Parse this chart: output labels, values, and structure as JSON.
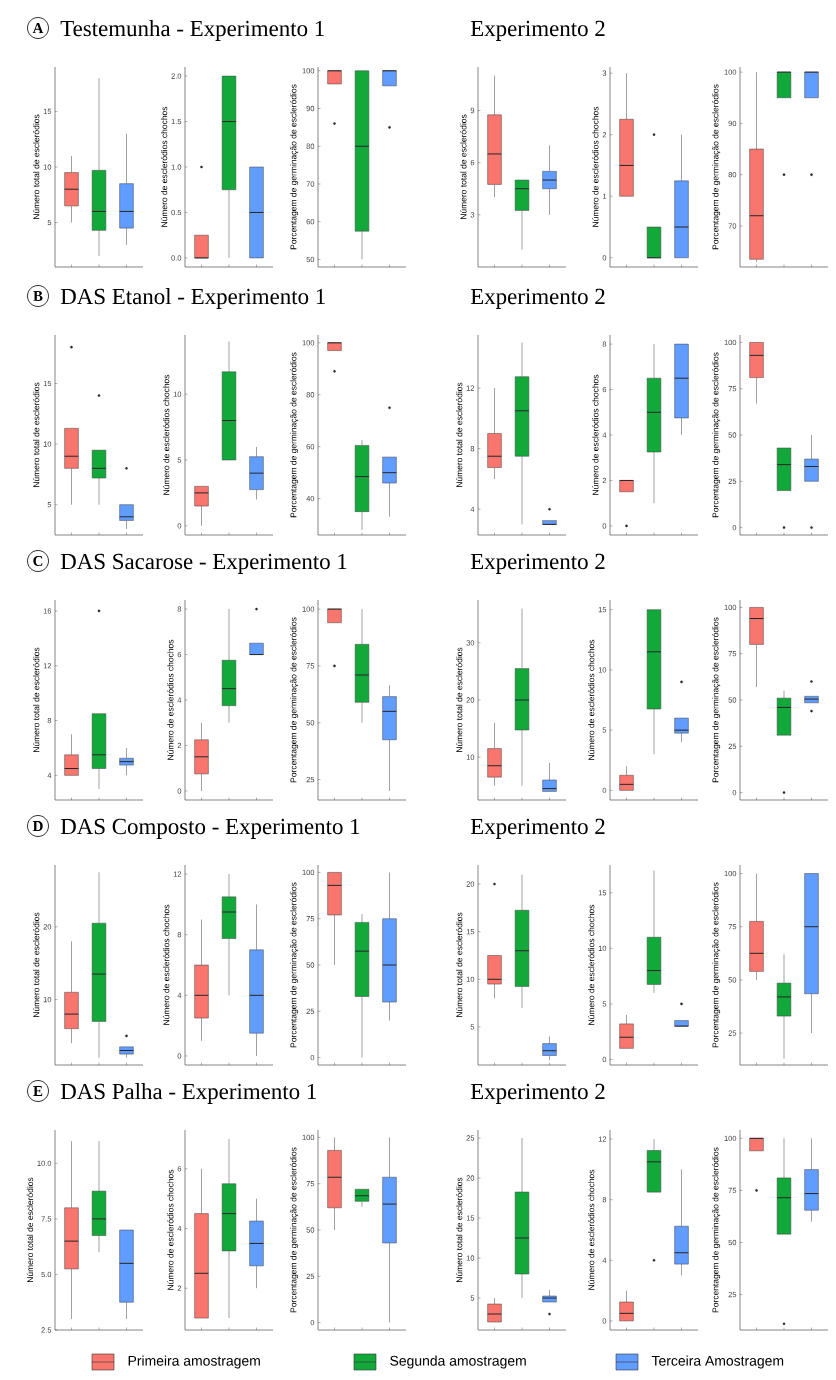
{
  "chart_data": [
    {
      "type": "box",
      "title": "Testemunha - Experimento 1",
      "annotations": [
        "A"
      ],
      "ylabel": "Número total de escleródios",
      "ylim": [
        1,
        19
      ],
      "yticks": [
        5,
        10,
        15
      ],
      "categories": [
        null,
        null,
        null
      ],
      "series": [
        {
          "color": "#f8766d",
          "boxes": [
            {
              "low": 5,
              "q1": 6.5,
              "median": 8,
              "q3": 9.5,
              "high": 11
            },
            null,
            null
          ]
        },
        {
          "color": "#12a83a",
          "boxes": [
            null,
            {
              "low": 2,
              "q1": 4.3,
              "median": 6,
              "q3": 9.7,
              "high": 18
            },
            null
          ]
        },
        {
          "color": "#619cff",
          "boxes": [
            null,
            null,
            {
              "low": 3,
              "q1": 4.5,
              "median": 6,
              "q3": 8.5,
              "high": 13
            }
          ]
        }
      ]
    },
    {
      "type": "box",
      "ylabel": "Número de escleródios chochos",
      "ylim": [
        -0.1,
        2.1
      ],
      "yticks": [
        {
          "value": 0,
          "label": "0.0"
        },
        {
          "value": 0.5,
          "label": "0.5"
        },
        {
          "value": 1,
          "label": "1.0"
        },
        {
          "value": 1.5,
          "label": "1.5"
        },
        {
          "value": 2,
          "label": "2.0"
        }
      ],
      "categories": [
        null,
        null,
        null
      ],
      "series": [
        {
          "color": "#f8766d",
          "boxes": [
            {
              "low": 0,
              "q1": 0,
              "median": 0,
              "q3": 0.25,
              "high": 0.25,
              "outliers": [
                1
              ]
            },
            null,
            null
          ]
        },
        {
          "color": "#12a83a",
          "boxes": [
            null,
            {
              "low": 0,
              "q1": 0.75,
              "median": 1.5,
              "q3": 2,
              "high": 2
            },
            null
          ]
        },
        {
          "color": "#619cff",
          "boxes": [
            null,
            null,
            {
              "low": 0,
              "q1": 0,
              "median": 0.5,
              "q3": 1,
              "high": 1
            }
          ]
        }
      ]
    },
    {
      "type": "box",
      "ylabel": "Porcentagem de germinação de escleródios",
      "ylim": [
        48,
        101
      ],
      "yticks": [
        50,
        60,
        70,
        80,
        90,
        100
      ],
      "categories": [
        null,
        null,
        null
      ],
      "series": [
        {
          "color": "#f8766d",
          "boxes": [
            {
              "low": 96.5,
              "q1": 96.5,
              "median": 100,
              "q3": 100,
              "high": 100,
              "outliers": [
                86
              ]
            },
            null,
            null
          ]
        },
        {
          "color": "#12a83a",
          "boxes": [
            null,
            {
              "low": 50,
              "q1": 57.5,
              "median": 80,
              "q3": 100,
              "high": 100
            },
            null
          ]
        },
        {
          "color": "#619cff",
          "boxes": [
            null,
            null,
            {
              "low": 96,
              "q1": 96,
              "median": 100,
              "q3": 100,
              "high": 100,
              "outliers": [
                85
              ]
            }
          ]
        }
      ]
    },
    {
      "type": "box",
      "title": "Experimento 2",
      "ylabel": "Número total de escleródios",
      "ylim": [
        0,
        11.5
      ],
      "yticks": [
        3,
        6,
        9
      ],
      "categories": [
        null,
        null,
        null
      ],
      "series": [
        {
          "color": "#f8766d",
          "boxes": [
            {
              "low": 4,
              "q1": 4.75,
              "median": 6.5,
              "q3": 8.75,
              "high": 11
            },
            null,
            null
          ]
        },
        {
          "color": "#12a83a",
          "boxes": [
            null,
            {
              "low": 1,
              "q1": 3.25,
              "median": 4.5,
              "q3": 5,
              "high": 5
            },
            null
          ]
        },
        {
          "color": "#619cff",
          "boxes": [
            null,
            null,
            {
              "low": 3,
              "q1": 4.5,
              "median": 5,
              "q3": 5.5,
              "high": 7
            }
          ]
        }
      ]
    },
    {
      "type": "box",
      "ylabel": "Número de escleródios chochos",
      "ylim": [
        -0.15,
        3.1
      ],
      "yticks": [
        0,
        1,
        2,
        3
      ],
      "categories": [
        null,
        null,
        null
      ],
      "series": [
        {
          "color": "#f8766d",
          "boxes": [
            {
              "low": 1,
              "q1": 1,
              "median": 1.5,
              "q3": 2.25,
              "high": 3
            },
            null,
            null
          ]
        },
        {
          "color": "#12a83a",
          "boxes": [
            null,
            {
              "low": 0,
              "q1": 0,
              "median": 0,
              "q3": 0.5,
              "high": 0.5,
              "outliers": [
                2
              ]
            },
            null
          ]
        },
        {
          "color": "#619cff",
          "boxes": [
            null,
            null,
            {
              "low": 0,
              "q1": 0,
              "median": 0.5,
              "q3": 1.25,
              "high": 2
            }
          ]
        }
      ]
    },
    {
      "type": "box",
      "ylabel": "Porcentagem de germinação de escleródios",
      "ylim": [
        62,
        101
      ],
      "yticks": [
        70,
        80,
        90,
        100
      ],
      "categories": [
        null,
        null,
        null
      ],
      "series": [
        {
          "color": "#f8766d",
          "boxes": [
            {
              "low": 63,
              "q1": 63.5,
              "median": 72,
              "q3": 85,
              "high": 100
            },
            null,
            null
          ]
        },
        {
          "color": "#12a83a",
          "boxes": [
            null,
            {
              "low": 95,
              "q1": 95,
              "median": 100,
              "q3": 100,
              "high": 100,
              "outliers": [
                80
              ]
            },
            null
          ]
        },
        {
          "color": "#619cff",
          "boxes": [
            null,
            null,
            {
              "low": 95,
              "q1": 95,
              "median": 100,
              "q3": 100,
              "high": 100,
              "outliers": [
                80
              ]
            }
          ]
        }
      ]
    },
    {
      "type": "box",
      "title": "DAS Etanol - Experimento 1",
      "annotations": [
        "B"
      ],
      "ylabel": "Número total de escleródios",
      "ylim": [
        2.5,
        19
      ],
      "yticks": [
        5,
        10,
        15
      ],
      "categories": [
        null,
        null,
        null
      ],
      "series": [
        {
          "color": "#f8766d",
          "boxes": [
            {
              "low": 5,
              "q1": 8,
              "median": 9,
              "q3": 11.3,
              "high": 11.3,
              "outliers": [
                18
              ]
            },
            null,
            null
          ]
        },
        {
          "color": "#12a83a",
          "boxes": [
            null,
            {
              "low": 5,
              "q1": 7.2,
              "median": 8,
              "q3": 9.5,
              "high": 9.5,
              "outliers": [
                14
              ]
            },
            null
          ]
        },
        {
          "color": "#619cff",
          "boxes": [
            null,
            null,
            {
              "low": 3,
              "q1": 3.7,
              "median": 4,
              "q3": 5,
              "high": 5,
              "outliers": [
                8
              ]
            }
          ]
        }
      ]
    },
    {
      "type": "box",
      "ylabel": "Número de escleródios chochos",
      "ylim": [
        -0.7,
        14.5
      ],
      "yticks": [
        0,
        5,
        10
      ],
      "categories": [
        null,
        null,
        null
      ],
      "series": [
        {
          "color": "#f8766d",
          "boxes": [
            {
              "low": 0,
              "q1": 1.5,
              "median": 2.5,
              "q3": 3,
              "high": 3
            },
            null,
            null
          ]
        },
        {
          "color": "#12a83a",
          "boxes": [
            null,
            {
              "low": 5,
              "q1": 5,
              "median": 8,
              "q3": 11.7,
              "high": 14
            },
            null
          ]
        },
        {
          "color": "#619cff",
          "boxes": [
            null,
            null,
            {
              "low": 2,
              "q1": 2.75,
              "median": 4,
              "q3": 5.25,
              "high": 6
            }
          ]
        }
      ]
    },
    {
      "type": "box",
      "ylabel": "Porcentagem de germinação de escleródios",
      "ylim": [
        26,
        103
      ],
      "yticks": [
        40,
        60,
        80,
        100
      ],
      "categories": [
        null,
        null,
        null
      ],
      "series": [
        {
          "color": "#f8766d",
          "boxes": [
            {
              "low": 97,
              "q1": 97,
              "median": 100,
              "q3": 100,
              "high": 100,
              "outliers": [
                89
              ]
            },
            null,
            null
          ]
        },
        {
          "color": "#12a83a",
          "boxes": [
            null,
            {
              "low": 28,
              "q1": 35,
              "median": 48.5,
              "q3": 60.5,
              "high": 62.5
            },
            null
          ]
        },
        {
          "color": "#619cff",
          "boxes": [
            null,
            null,
            {
              "low": 33,
              "q1": 46,
              "median": 50,
              "q3": 56,
              "high": 56,
              "outliers": [
                75
              ]
            }
          ]
        }
      ]
    },
    {
      "type": "box",
      "title": "Experimento 2",
      "ylabel": "Número total de escleródios",
      "ylim": [
        2.3,
        15.5
      ],
      "yticks": [
        4,
        8,
        12
      ],
      "categories": [
        null,
        null,
        null
      ],
      "series": [
        {
          "color": "#f8766d",
          "boxes": [
            {
              "low": 6,
              "q1": 6.75,
              "median": 7.5,
              "q3": 9,
              "high": 12
            },
            null,
            null
          ]
        },
        {
          "color": "#12a83a",
          "boxes": [
            null,
            {
              "low": 3,
              "q1": 7.5,
              "median": 10.5,
              "q3": 12.75,
              "high": 15
            },
            null
          ]
        },
        {
          "color": "#619cff",
          "boxes": [
            null,
            null,
            {
              "low": 3,
              "q1": 3,
              "median": 3,
              "q3": 3.25,
              "high": 3.25,
              "outliers": [
                4
              ]
            }
          ]
        }
      ]
    },
    {
      "type": "box",
      "ylabel": "Número de escleródios chochos",
      "ylim": [
        -0.4,
        8.4
      ],
      "yticks": [
        0,
        2,
        4,
        6,
        8
      ],
      "categories": [
        null,
        null,
        null
      ],
      "series": [
        {
          "color": "#f8766d",
          "boxes": [
            {
              "low": 1.5,
              "q1": 1.5,
              "median": 2,
              "q3": 2,
              "high": 2,
              "outliers": [
                0
              ]
            },
            null,
            null
          ]
        },
        {
          "color": "#12a83a",
          "boxes": [
            null,
            {
              "low": 1,
              "q1": 3.25,
              "median": 5,
              "q3": 6.5,
              "high": 8
            },
            null
          ]
        },
        {
          "color": "#619cff",
          "boxes": [
            null,
            null,
            {
              "low": 4,
              "q1": 4.75,
              "median": 6.5,
              "q3": 8,
              "high": 8
            }
          ]
        }
      ]
    },
    {
      "type": "box",
      "ylabel": "Porcentagem de germinação de escleródios",
      "ylim": [
        -4,
        104
      ],
      "yticks": [
        0,
        25,
        50,
        75,
        100
      ],
      "categories": [
        null,
        null,
        null
      ],
      "series": [
        {
          "color": "#f8766d",
          "boxes": [
            {
              "low": 67,
              "q1": 81,
              "median": 93,
              "q3": 100,
              "high": 100
            },
            null,
            null
          ]
        },
        {
          "color": "#12a83a",
          "boxes": [
            null,
            {
              "low": 20,
              "q1": 20,
              "median": 34,
              "q3": 43,
              "high": 43,
              "outliers": [
                0
              ]
            },
            null
          ]
        },
        {
          "color": "#619cff",
          "boxes": [
            null,
            null,
            {
              "low": 25,
              "q1": 25,
              "median": 33,
              "q3": 37,
              "high": 50,
              "outliers": [
                0
              ]
            }
          ]
        }
      ]
    },
    {
      "type": "box",
      "title": "DAS Sacarose - Experimento 1",
      "annotations": [
        "C"
      ],
      "ylabel": "Número total de escleródios",
      "ylim": [
        2.2,
        16.8
      ],
      "yticks": [
        4,
        8,
        12,
        16
      ],
      "categories": [
        null,
        null,
        null
      ],
      "series": [
        {
          "color": "#f8766d",
          "boxes": [
            {
              "low": 4,
              "q1": 4,
              "median": 4.5,
              "q3": 5.5,
              "high": 7
            },
            null,
            null
          ]
        },
        {
          "color": "#12a83a",
          "boxes": [
            null,
            {
              "low": 3,
              "q1": 4.5,
              "median": 5.5,
              "q3": 8.5,
              "high": 8.5,
              "outliers": [
                16
              ]
            },
            null
          ]
        },
        {
          "color": "#619cff",
          "boxes": [
            null,
            null,
            {
              "low": 4,
              "q1": 4.75,
              "median": 5,
              "q3": 5.25,
              "high": 6
            }
          ]
        }
      ]
    },
    {
      "type": "box",
      "ylabel": "Número de escleródios chochos",
      "ylim": [
        -0.4,
        8.4
      ],
      "yticks": [
        0,
        2,
        4,
        6,
        8
      ],
      "categories": [
        null,
        null,
        null
      ],
      "series": [
        {
          "color": "#f8766d",
          "boxes": [
            {
              "low": 0,
              "q1": 0.75,
              "median": 1.5,
              "q3": 2.25,
              "high": 3
            },
            null,
            null
          ]
        },
        {
          "color": "#12a83a",
          "boxes": [
            null,
            {
              "low": 3,
              "q1": 3.75,
              "median": 4.5,
              "q3": 5.75,
              "high": 8
            },
            null
          ]
        },
        {
          "color": "#619cff",
          "boxes": [
            null,
            null,
            {
              "low": 6,
              "q1": 6,
              "median": 6,
              "q3": 6.5,
              "high": 6.5,
              "outliers": [
                8
              ]
            }
          ]
        }
      ]
    },
    {
      "type": "box",
      "ylabel": "Porcentagem de germinação de escleródios",
      "ylim": [
        16,
        104
      ],
      "yticks": [
        25,
        50,
        75,
        100
      ],
      "categories": [
        null,
        null,
        null
      ],
      "series": [
        {
          "color": "#f8766d",
          "boxes": [
            {
              "low": 94,
              "q1": 94,
              "median": 100,
              "q3": 100,
              "high": 100,
              "outliers": [
                75
              ]
            },
            null,
            null
          ]
        },
        {
          "color": "#12a83a",
          "boxes": [
            null,
            {
              "low": 50,
              "q1": 59,
              "median": 71,
              "q3": 84.5,
              "high": 100
            },
            null
          ]
        },
        {
          "color": "#619cff",
          "boxes": [
            null,
            null,
            {
              "low": 20,
              "q1": 42.5,
              "median": 55,
              "q3": 61.5,
              "high": 66.5
            }
          ]
        }
      ]
    },
    {
      "type": "box",
      "title": "Experimento 2",
      "ylabel": "Número total de escleródios",
      "ylim": [
        2.5,
        37.5
      ],
      "yticks": [
        10,
        20,
        30
      ],
      "categories": [
        null,
        null,
        null
      ],
      "series": [
        {
          "color": "#f8766d",
          "boxes": [
            {
              "low": 5,
              "q1": 6.5,
              "median": 8.5,
              "q3": 11.5,
              "high": 16
            },
            null,
            null
          ]
        },
        {
          "color": "#12a83a",
          "boxes": [
            null,
            {
              "low": 5,
              "q1": 14.75,
              "median": 20,
              "q3": 25.5,
              "high": 36
            },
            null
          ]
        },
        {
          "color": "#619cff",
          "boxes": [
            null,
            null,
            {
              "low": 4,
              "q1": 4,
              "median": 4.5,
              "q3": 6,
              "high": 9
            }
          ]
        }
      ]
    },
    {
      "type": "box",
      "ylabel": "Número de escleródios chochos",
      "ylim": [
        -0.8,
        15.8
      ],
      "yticks": [
        0,
        5,
        10,
        15
      ],
      "categories": [
        null,
        null,
        null
      ],
      "series": [
        {
          "color": "#f8766d",
          "boxes": [
            {
              "low": 0,
              "q1": 0,
              "median": 0.5,
              "q3": 1.25,
              "high": 2
            },
            null,
            null
          ]
        },
        {
          "color": "#12a83a",
          "boxes": [
            null,
            {
              "low": 3,
              "q1": 6.75,
              "median": 11.5,
              "q3": 15,
              "high": 15
            },
            null
          ]
        },
        {
          "color": "#619cff",
          "boxes": [
            null,
            null,
            {
              "low": 4,
              "q1": 4.75,
              "median": 5,
              "q3": 6,
              "high": 6,
              "outliers": [
                9
              ]
            }
          ]
        }
      ]
    },
    {
      "type": "box",
      "ylabel": "Porcentagem de germinação de escleródios",
      "ylim": [
        -4,
        104
      ],
      "yticks": [
        0,
        25,
        50,
        75,
        100
      ],
      "categories": [
        null,
        null,
        null
      ],
      "series": [
        {
          "color": "#f8766d",
          "boxes": [
            {
              "low": 57,
              "q1": 80,
              "median": 94,
              "q3": 100,
              "high": 100
            },
            null,
            null
          ]
        },
        {
          "color": "#12a83a",
          "boxes": [
            null,
            {
              "low": 31,
              "q1": 31,
              "median": 46,
              "q3": 51,
              "high": 55,
              "outliers": [
                0
              ]
            },
            null
          ]
        },
        {
          "color": "#619cff",
          "boxes": [
            null,
            null,
            {
              "low": 48.5,
              "q1": 48.5,
              "median": 50.5,
              "q3": 52,
              "high": 52,
              "outliers": [
                44,
                60
              ]
            }
          ]
        }
      ]
    },
    {
      "type": "box",
      "title": "DAS Composto - Experimento 1",
      "annotations": [
        "D"
      ],
      "ylabel": "Número total de escleródios",
      "ylim": [
        1,
        28.5
      ],
      "yticks": [
        10,
        20
      ],
      "categories": [
        null,
        null,
        null
      ],
      "series": [
        {
          "color": "#f8766d",
          "boxes": [
            {
              "low": 4,
              "q1": 6,
              "median": 8,
              "q3": 11,
              "high": 18
            },
            null,
            null
          ]
        },
        {
          "color": "#12a83a",
          "boxes": [
            null,
            {
              "low": 2,
              "q1": 7,
              "median": 13.5,
              "q3": 20.5,
              "high": 27.5
            },
            null
          ]
        },
        {
          "color": "#619cff",
          "boxes": [
            null,
            null,
            {
              "low": 2,
              "q1": 2.5,
              "median": 3,
              "q3": 3.5,
              "high": 3.5,
              "outliers": [
                5
              ]
            }
          ]
        }
      ]
    },
    {
      "type": "box",
      "ylabel": "Número de escleródios chochos",
      "ylim": [
        -0.6,
        12.6
      ],
      "yticks": [
        0,
        4,
        8,
        12
      ],
      "categories": [
        null,
        null,
        null
      ],
      "series": [
        {
          "color": "#f8766d",
          "boxes": [
            {
              "low": 1,
              "q1": 2.5,
              "median": 4,
              "q3": 6,
              "high": 9
            },
            null,
            null
          ]
        },
        {
          "color": "#12a83a",
          "boxes": [
            null,
            {
              "low": 4,
              "q1": 7.75,
              "median": 9.5,
              "q3": 10.5,
              "high": 12
            },
            null
          ]
        },
        {
          "color": "#619cff",
          "boxes": [
            null,
            null,
            {
              "low": 0,
              "q1": 1.5,
              "median": 4,
              "q3": 7,
              "high": 10
            }
          ]
        }
      ]
    },
    {
      "type": "box",
      "ylabel": "Porcentagem de germinação de escleródios",
      "ylim": [
        -4,
        104
      ],
      "yticks": [
        0,
        25,
        50,
        75,
        100
      ],
      "categories": [
        null,
        null,
        null
      ],
      "series": [
        {
          "color": "#f8766d",
          "boxes": [
            {
              "low": 50,
              "q1": 77,
              "median": 93,
              "q3": 100,
              "high": 100
            },
            null,
            null
          ]
        },
        {
          "color": "#12a83a",
          "boxes": [
            null,
            {
              "low": 0,
              "q1": 33,
              "median": 57.5,
              "q3": 73,
              "high": 77.5
            },
            null
          ]
        },
        {
          "color": "#619cff",
          "boxes": [
            null,
            null,
            {
              "low": 20,
              "q1": 30,
              "median": 50,
              "q3": 75,
              "high": 100
            }
          ]
        }
      ]
    },
    {
      "type": "box",
      "title": "Experimento 2",
      "ylabel": "Número total de escleródios",
      "ylim": [
        1,
        22
      ],
      "yticks": [
        5,
        10,
        15,
        20
      ],
      "categories": [
        null,
        null,
        null
      ],
      "series": [
        {
          "color": "#f8766d",
          "boxes": [
            {
              "low": 8,
              "q1": 9.5,
              "median": 10,
              "q3": 12.5,
              "high": 12.5,
              "outliers": [
                20
              ]
            },
            null,
            null
          ]
        },
        {
          "color": "#12a83a",
          "boxes": [
            null,
            {
              "low": 7,
              "q1": 9.25,
              "median": 13,
              "q3": 17.25,
              "high": 21
            },
            null
          ]
        },
        {
          "color": "#619cff",
          "boxes": [
            null,
            null,
            {
              "low": 1.5,
              "q1": 2,
              "median": 2.5,
              "q3": 3.25,
              "high": 4
            }
          ]
        }
      ]
    },
    {
      "type": "box",
      "ylabel": "Número de escleródios chochos",
      "ylim": [
        -0.5,
        17.5
      ],
      "yticks": [
        0,
        5,
        10,
        15
      ],
      "categories": [
        null,
        null,
        null
      ],
      "series": [
        {
          "color": "#f8766d",
          "boxes": [
            {
              "low": 1,
              "q1": 1,
              "median": 2,
              "q3": 3.2,
              "high": 4
            },
            null,
            null
          ]
        },
        {
          "color": "#12a83a",
          "boxes": [
            null,
            {
              "low": 6,
              "q1": 6.75,
              "median": 8,
              "q3": 11,
              "high": 17
            },
            null
          ]
        },
        {
          "color": "#619cff",
          "boxes": [
            null,
            null,
            {
              "low": 3,
              "q1": 3,
              "median": 3,
              "q3": 3.5,
              "high": 3.5,
              "outliers": [
                5
              ]
            }
          ]
        }
      ]
    },
    {
      "type": "box",
      "ylabel": "Porcentagem de germinação de escleródios",
      "ylim": [
        10,
        104
      ],
      "yticks": [
        25,
        50,
        75,
        100
      ],
      "categories": [
        null,
        null,
        null
      ],
      "series": [
        {
          "color": "#f8766d",
          "boxes": [
            {
              "low": 50,
              "q1": 54,
              "median": 62.5,
              "q3": 77.5,
              "high": 100
            },
            null,
            null
          ]
        },
        {
          "color": "#12a83a",
          "boxes": [
            null,
            {
              "low": 13,
              "q1": 33,
              "median": 42,
              "q3": 48.5,
              "high": 62
            },
            null
          ]
        },
        {
          "color": "#619cff",
          "boxes": [
            null,
            null,
            {
              "low": 25,
              "q1": 43.5,
              "median": 75,
              "q3": 100,
              "high": 100
            }
          ]
        }
      ]
    },
    {
      "type": "box",
      "title": "DAS Palha - Experimento 1",
      "annotations": [
        "E"
      ],
      "ylabel": "Número total de escleródios",
      "ylim": [
        2.5,
        11.5
      ],
      "yticks": [
        {
          "value": 2.5,
          "label": "2.5"
        },
        {
          "value": 5,
          "label": "5.0"
        },
        {
          "value": 7.5,
          "label": "7.5"
        },
        {
          "value": 10,
          "label": "10.0"
        }
      ],
      "categories": [
        null,
        null,
        null
      ],
      "series": [
        {
          "color": "#f8766d",
          "boxes": [
            {
              "low": 3,
              "q1": 5.25,
              "median": 6.5,
              "q3": 8,
              "high": 11
            },
            null,
            null
          ]
        },
        {
          "color": "#12a83a",
          "boxes": [
            null,
            {
              "low": 6,
              "q1": 6.75,
              "median": 7.5,
              "q3": 8.75,
              "high": 11
            },
            null
          ]
        },
        {
          "color": "#619cff",
          "boxes": [
            null,
            null,
            {
              "low": 3,
              "q1": 3.75,
              "median": 5.5,
              "q3": 7,
              "high": 7
            }
          ]
        }
      ]
    },
    {
      "type": "box",
      "ylabel": "Número de escleródios chochos",
      "ylim": [
        0.6,
        7.3
      ],
      "yticks": [
        2,
        4,
        6
      ],
      "categories": [
        null,
        null,
        null
      ],
      "series": [
        {
          "color": "#f8766d",
          "boxes": [
            {
              "low": 1,
              "q1": 1,
              "median": 2.5,
              "q3": 4.5,
              "high": 6
            },
            null,
            null
          ]
        },
        {
          "color": "#12a83a",
          "boxes": [
            null,
            {
              "low": 1,
              "q1": 3.25,
              "median": 4.5,
              "q3": 5.5,
              "high": 7
            },
            null
          ]
        },
        {
          "color": "#619cff",
          "boxes": [
            null,
            null,
            {
              "low": 2,
              "q1": 2.75,
              "median": 3.5,
              "q3": 4.25,
              "high": 5
            }
          ]
        }
      ]
    },
    {
      "type": "box",
      "ylabel": "Porcentagem de germinação de escleródios",
      "ylim": [
        -4,
        104
      ],
      "yticks": [
        0,
        25,
        50,
        75,
        100
      ],
      "categories": [
        null,
        null,
        null
      ],
      "series": [
        {
          "color": "#f8766d",
          "boxes": [
            {
              "low": 50,
              "q1": 62,
              "median": 78.5,
              "q3": 93,
              "high": 100
            },
            null,
            null
          ]
        },
        {
          "color": "#12a83a",
          "boxes": [
            null,
            {
              "low": 62.5,
              "q1": 65.5,
              "median": 68.5,
              "q3": 72,
              "high": 72
            },
            null
          ]
        },
        {
          "color": "#619cff",
          "boxes": [
            null,
            null,
            {
              "low": 0,
              "q1": 43,
              "median": 64,
              "q3": 78.5,
              "high": 100
            }
          ]
        }
      ]
    },
    {
      "type": "box",
      "title": "Experimento 2",
      "ylabel": "Número total de escleródios",
      "ylim": [
        1,
        26
      ],
      "yticks": [
        5,
        10,
        15,
        20,
        25
      ],
      "categories": [
        null,
        null,
        null
      ],
      "series": [
        {
          "color": "#f8766d",
          "boxes": [
            {
              "low": 2,
              "q1": 2,
              "median": 3,
              "q3": 4.25,
              "high": 5
            },
            null,
            null
          ]
        },
        {
          "color": "#12a83a",
          "boxes": [
            null,
            {
              "low": 5,
              "q1": 8,
              "median": 12.5,
              "q3": 18.25,
              "high": 25
            },
            null
          ]
        },
        {
          "color": "#619cff",
          "boxes": [
            null,
            null,
            {
              "low": 4.5,
              "q1": 4.5,
              "median": 5,
              "q3": 5.25,
              "high": 6,
              "outliers": [
                3
              ]
            }
          ]
        }
      ]
    },
    {
      "type": "box",
      "ylabel": "Número de escleródios chochos",
      "ylim": [
        -0.6,
        12.6
      ],
      "yticks": [
        0,
        4,
        8,
        12
      ],
      "categories": [
        null,
        null,
        null
      ],
      "series": [
        {
          "color": "#f8766d",
          "boxes": [
            {
              "low": 0,
              "q1": 0,
              "median": 0.5,
              "q3": 1.25,
              "high": 2
            },
            null,
            null
          ]
        },
        {
          "color": "#12a83a",
          "boxes": [
            null,
            {
              "low": 8.5,
              "q1": 8.5,
              "median": 10.5,
              "q3": 11.25,
              "high": 12,
              "outliers": [
                4
              ]
            },
            null
          ]
        },
        {
          "color": "#619cff",
          "boxes": [
            null,
            null,
            {
              "low": 3,
              "q1": 3.75,
              "median": 4.5,
              "q3": 6.25,
              "high": 10
            }
          ]
        }
      ]
    },
    {
      "type": "box",
      "ylabel": "Porcentagem de germinação de escleródios",
      "ylim": [
        8,
        104
      ],
      "yticks": [
        25,
        50,
        75,
        100
      ],
      "categories": [
        null,
        null,
        null
      ],
      "legend": "bottom",
      "series": [
        {
          "name": "Primeira amostragem",
          "color": "#f8766d",
          "boxes": [
            {
              "low": 94,
              "q1": 94,
              "median": 100,
              "q3": 100,
              "high": 100,
              "outliers": [
                75
              ]
            },
            null,
            null
          ]
        },
        {
          "name": "Segunda amostragem",
          "color": "#12a83a",
          "boxes": [
            null,
            {
              "low": 54,
              "q1": 54,
              "median": 71.5,
              "q3": 81,
              "high": 100,
              "outliers": [
                11
              ]
            },
            null
          ]
        },
        {
          "name": "Terceira Amostragem",
          "color": "#619cff",
          "boxes": [
            null,
            null,
            {
              "low": 60,
              "q1": 65.5,
              "median": 73.5,
              "q3": 85,
              "high": 100
            }
          ]
        }
      ]
    }
  ]
}
